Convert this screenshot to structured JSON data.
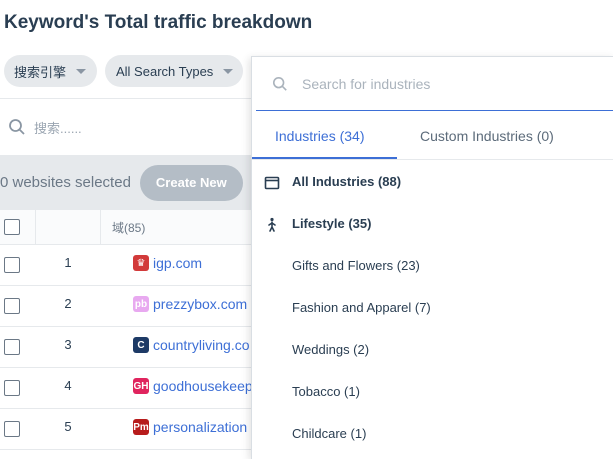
{
  "page": {
    "title": "Keyword's Total traffic breakdown"
  },
  "filters": {
    "search_engine": "搜索引擎",
    "search_types": "All Search Types"
  },
  "table_search": {
    "placeholder": "搜索......"
  },
  "toolbar": {
    "selected_text": "0 websites selected",
    "create_button": "Create New"
  },
  "table": {
    "domain_header": "域(85)",
    "rows": [
      {
        "num": "1",
        "site": "igp.com",
        "favicon_color": "#d23a3a",
        "favicon_glyph": "♛"
      },
      {
        "num": "2",
        "site": "prezzybox.com",
        "favicon_color": "#e8a9f0",
        "favicon_glyph": "pb"
      },
      {
        "num": "3",
        "site": "countryliving.co",
        "favicon_color": "#1d3a66",
        "favicon_glyph": "C"
      },
      {
        "num": "4",
        "site": "goodhousekeep",
        "favicon_color": "#e0245e",
        "favicon_glyph": "GH"
      },
      {
        "num": "5",
        "site": "personalization",
        "favicon_color": "#b71c1c",
        "favicon_glyph": "Pm"
      }
    ]
  },
  "dropdown": {
    "search_placeholder": "Search for industries",
    "tabs": [
      {
        "label": "Industries (34)",
        "active": true
      },
      {
        "label": "Custom Industries (0)",
        "active": false
      }
    ],
    "items": [
      {
        "label": "All Industries (88)",
        "icon": "window-icon",
        "bold": true
      },
      {
        "label": "Lifestyle (35)",
        "icon": "person-walking-icon",
        "bold": true
      },
      {
        "label": "Gifts and Flowers (23)",
        "icon": "",
        "bold": false
      },
      {
        "label": "Fashion and Apparel (7)",
        "icon": "",
        "bold": false
      },
      {
        "label": "Weddings (2)",
        "icon": "",
        "bold": false
      },
      {
        "label": "Tobacco (1)",
        "icon": "",
        "bold": false
      },
      {
        "label": "Childcare (1)",
        "icon": "",
        "bold": false
      }
    ]
  },
  "colors": {
    "accent": "#3d6fd6",
    "text": "#2a3e52",
    "chip_bg": "#e6e9ec"
  }
}
